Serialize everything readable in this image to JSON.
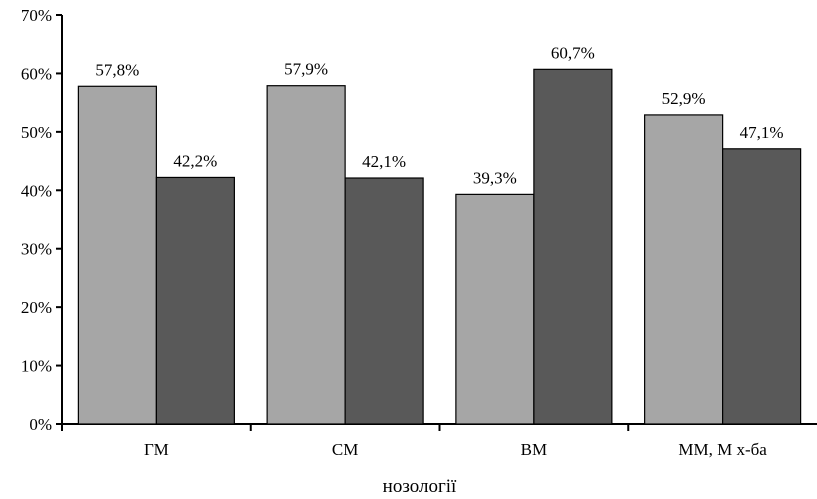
{
  "chart_data": {
    "type": "bar",
    "title": "",
    "xlabel": "нозології",
    "ylabel": "",
    "categories": [
      "ГМ",
      "СМ",
      "ВМ",
      "ММ, М х-ба"
    ],
    "series": [
      {
        "color": "#a6a6a6",
        "values": [
          57.8,
          57.9,
          39.3,
          52.9
        ],
        "labels": [
          "57,8%",
          "57,9%",
          "39,3%",
          "52,9%"
        ]
      },
      {
        "color": "#595959",
        "values": [
          42.2,
          42.1,
          60.7,
          47.1
        ],
        "labels": [
          "42,2%",
          "42,1%",
          "60,7%",
          "47,1%"
        ]
      }
    ],
    "ylim": [
      0,
      70
    ],
    "yticks": [
      0,
      10,
      20,
      30,
      40,
      50,
      60,
      70
    ],
    "ytick_labels": [
      "0%",
      "10%",
      "20%",
      "30%",
      "40%",
      "50%",
      "60%",
      "70%"
    ],
    "grid": false,
    "legend": "none"
  }
}
